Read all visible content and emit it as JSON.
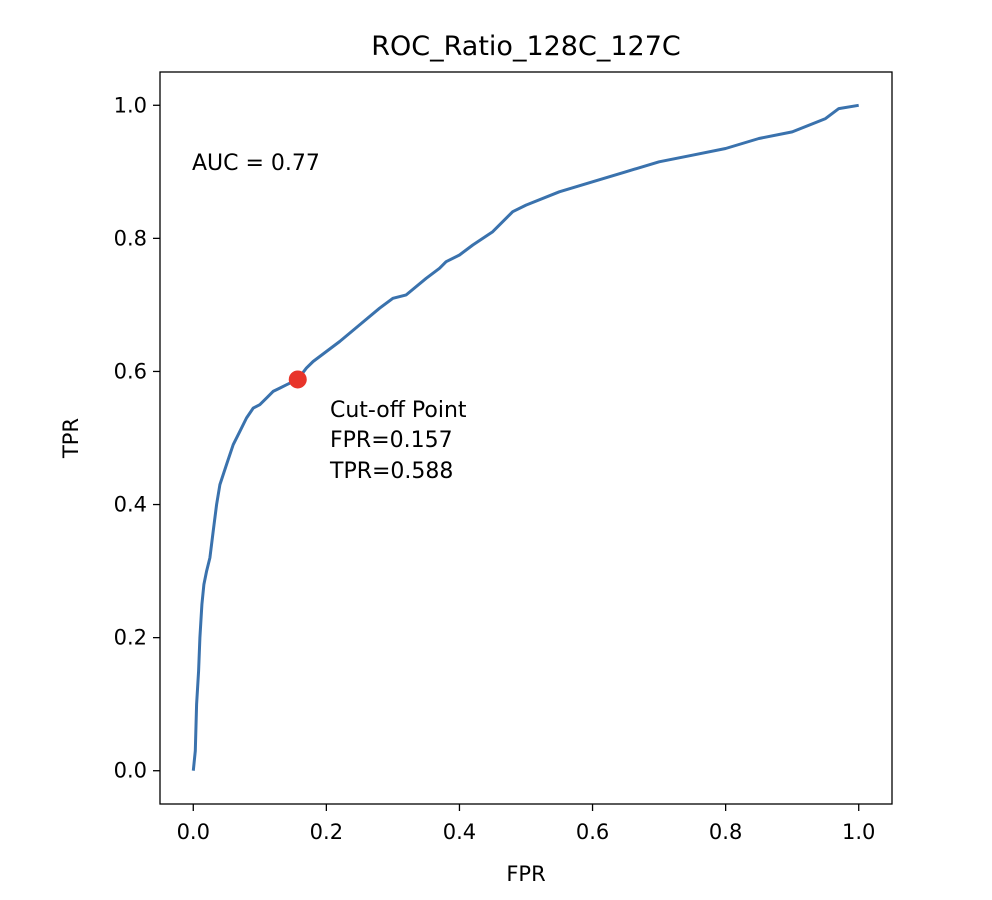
{
  "chart_data": {
    "type": "line",
    "title": "ROC_Ratio_128C_127C",
    "xlabel": "FPR",
    "ylabel": "TPR",
    "xlim": [
      -0.05,
      1.05
    ],
    "ylim": [
      -0.05,
      1.05
    ],
    "xticks": [
      "0.0",
      "0.2",
      "0.4",
      "0.6",
      "0.8",
      "1.0"
    ],
    "yticks": [
      "0.0",
      "0.2",
      "0.4",
      "0.6",
      "0.8",
      "1.0"
    ],
    "grid": false,
    "legend": "none",
    "auc_text": "AUC = 0.77",
    "cutoff": {
      "label": "Cut-off Point",
      "fpr_text": "FPR=0.157",
      "tpr_text": "TPR=0.588",
      "x": 0.157,
      "y": 0.588,
      "color": "#e8352b"
    },
    "series": [
      {
        "color": "#3a72ad",
        "x": [
          0.0,
          0.003,
          0.005,
          0.008,
          0.01,
          0.013,
          0.016,
          0.02,
          0.025,
          0.03,
          0.035,
          0.04,
          0.05,
          0.06,
          0.07,
          0.08,
          0.09,
          0.1,
          0.11,
          0.12,
          0.13,
          0.14,
          0.157,
          0.17,
          0.18,
          0.2,
          0.22,
          0.25,
          0.28,
          0.3,
          0.32,
          0.35,
          0.37,
          0.38,
          0.4,
          0.42,
          0.45,
          0.48,
          0.5,
          0.55,
          0.6,
          0.65,
          0.7,
          0.75,
          0.8,
          0.85,
          0.9,
          0.95,
          0.97,
          1.0
        ],
        "y": [
          0.0,
          0.03,
          0.1,
          0.15,
          0.2,
          0.25,
          0.28,
          0.3,
          0.32,
          0.36,
          0.4,
          0.43,
          0.46,
          0.49,
          0.51,
          0.53,
          0.545,
          0.55,
          0.56,
          0.57,
          0.575,
          0.58,
          0.588,
          0.605,
          0.615,
          0.63,
          0.645,
          0.67,
          0.695,
          0.71,
          0.715,
          0.74,
          0.755,
          0.765,
          0.775,
          0.79,
          0.81,
          0.84,
          0.85,
          0.87,
          0.885,
          0.9,
          0.915,
          0.925,
          0.935,
          0.95,
          0.96,
          0.98,
          0.995,
          1.0
        ]
      }
    ]
  }
}
